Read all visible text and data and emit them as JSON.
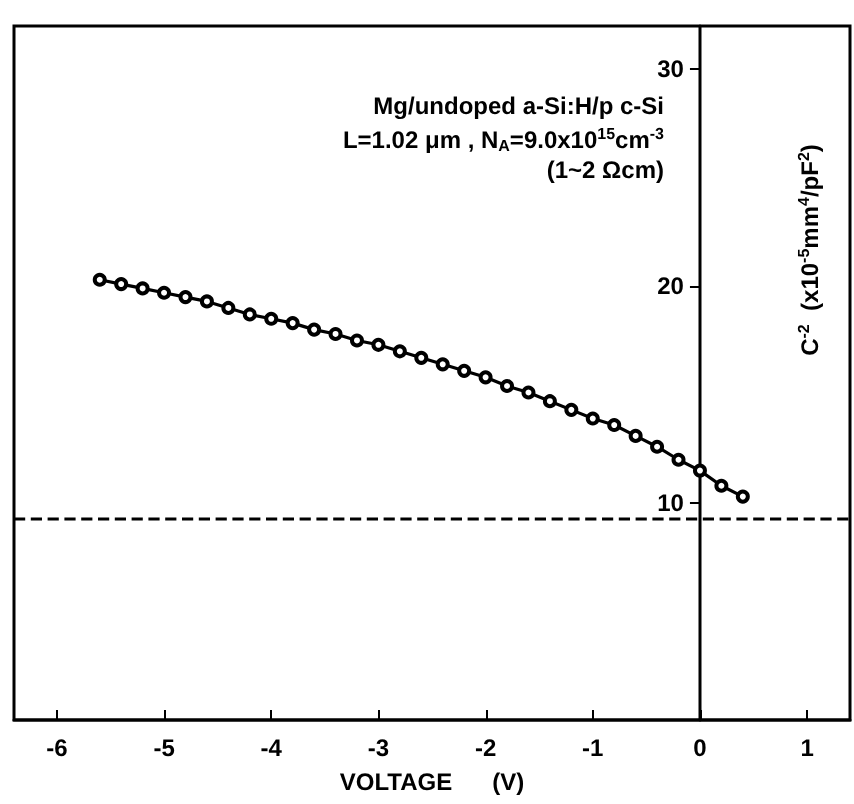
{
  "chart_data": {
    "type": "line",
    "xlabel": "VOLTAGE      (V)",
    "ylabel": "C$^{-2}$  (x10$^{-5}$mm$^{4}$/pF$^{2}$)",
    "annotations": [
      "Mg/undoped a-Si:H/p c-Si",
      "L=1.02 μm , N$_{A}$=9.0x10$^{15}$cm$^{-3}$",
      "(1~2 Ωcm)"
    ],
    "x": [
      -5.6,
      -5.4,
      -5.2,
      -5.0,
      -4.8,
      -4.6,
      -4.4,
      -4.2,
      -4.0,
      -3.8,
      -3.6,
      -3.4,
      -3.2,
      -3.0,
      -2.8,
      -2.6,
      -2.4,
      -2.2,
      -2.0,
      -1.8,
      -1.6,
      -1.4,
      -1.2,
      -1.0,
      -0.8,
      -0.6,
      -0.4,
      -0.2,
      0,
      0.2,
      0.4
    ],
    "series": [
      {
        "color": "#000000",
        "values": [
          20.3,
          20.1,
          19.9,
          19.7,
          19.5,
          19.3,
          19.0,
          18.7,
          18.5,
          18.3,
          18.0,
          17.8,
          17.5,
          17.3,
          17.0,
          16.7,
          16.4,
          16.1,
          15.8,
          15.4,
          15.1,
          14.7,
          14.3,
          13.9,
          13.6,
          13.1,
          12.6,
          12.0,
          11.5,
          10.8,
          10.3
        ]
      }
    ],
    "xlim": [
      -6.4,
      1.4
    ],
    "xticks": [
      -6,
      -5,
      -4,
      -3,
      -2,
      -1,
      0,
      1
    ],
    "ylim": [
      0,
      32
    ],
    "yticks": [
      10,
      20,
      30
    ],
    "ref_lines": [
      {
        "axis": "y",
        "value": 9.3,
        "line_style": "dashed",
        "color": "#000000"
      }
    ],
    "grid": false,
    "marker": "circle",
    "line_style": "solid"
  }
}
